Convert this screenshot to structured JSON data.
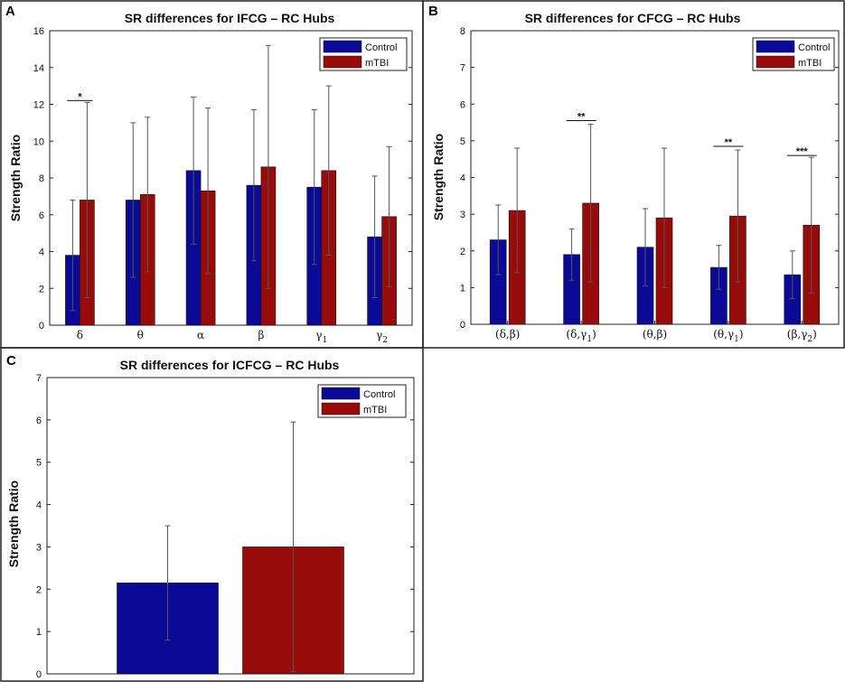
{
  "colors": {
    "control": "#0a0a96",
    "mtbi": "#980b0b",
    "errorbar": "#555555",
    "border": "#222222"
  },
  "legend": {
    "control": "Control",
    "mtbi": "mTBI"
  },
  "chart_data": [
    {
      "panel": "A",
      "type": "bar",
      "title": "SR differences for IFCG – RC Hubs",
      "ylabel": "Strength Ratio",
      "xlabel": "",
      "ylim": [
        0,
        16
      ],
      "yticks": [
        0,
        2,
        4,
        6,
        8,
        10,
        12,
        14,
        16
      ],
      "categories": [
        "δ",
        "θ",
        "α",
        "β",
        "γ₁",
        "γ₂"
      ],
      "series": [
        {
          "name": "Control",
          "values": [
            3.8,
            6.8,
            8.4,
            7.6,
            7.5,
            4.8
          ],
          "err_upper": [
            6.8,
            11.0,
            12.4,
            11.7,
            11.7,
            8.1
          ]
        },
        {
          "name": "mTBI",
          "values": [
            6.8,
            7.1,
            7.3,
            8.6,
            8.4,
            5.9
          ],
          "err_upper": [
            12.1,
            11.3,
            11.8,
            15.2,
            13.0,
            9.7
          ]
        }
      ],
      "significance": [
        {
          "category": 0,
          "label": "*",
          "y": 12.2
        }
      ],
      "legend_position": "top-right"
    },
    {
      "panel": "B",
      "type": "bar",
      "title": "SR differences for CFCG – RC Hubs",
      "ylabel": "Strength Ratio",
      "xlabel": "",
      "ylim": [
        0,
        8
      ],
      "yticks": [
        0,
        1,
        2,
        3,
        4,
        5,
        6,
        7,
        8
      ],
      "categories": [
        "(δ,β)",
        "(δ,γ₁)",
        "(θ,β)",
        "(θ,γ₁)",
        "(β,γ₂)"
      ],
      "series": [
        {
          "name": "Control",
          "values": [
            2.3,
            1.9,
            2.1,
            1.55,
            1.35
          ],
          "err_upper": [
            3.25,
            2.6,
            3.15,
            2.15,
            2.0
          ]
        },
        {
          "name": "mTBI",
          "values": [
            3.1,
            3.3,
            2.9,
            2.95,
            2.7
          ],
          "err_upper": [
            4.8,
            5.45,
            4.8,
            4.75,
            4.55
          ]
        }
      ],
      "significance": [
        {
          "category": 1,
          "label": "**",
          "y": 5.55
        },
        {
          "category": 3,
          "label": "**",
          "y": 4.85
        },
        {
          "category": 4,
          "label": "***",
          "y": 4.6
        }
      ],
      "legend_position": "top-right"
    },
    {
      "panel": "C",
      "type": "bar",
      "title": "SR differences for ICFCG – RC Hubs",
      "ylabel": "Strength Ratio",
      "xlabel": "",
      "ylim": [
        0,
        7
      ],
      "yticks": [
        0,
        1,
        2,
        3,
        4,
        5,
        6,
        7
      ],
      "categories": [
        ""
      ],
      "series": [
        {
          "name": "Control",
          "values": [
            2.15
          ],
          "err_upper": [
            3.5
          ]
        },
        {
          "name": "mTBI",
          "values": [
            3.0
          ],
          "err_upper": [
            5.95
          ]
        }
      ],
      "significance": [],
      "legend_position": "top-right"
    }
  ]
}
